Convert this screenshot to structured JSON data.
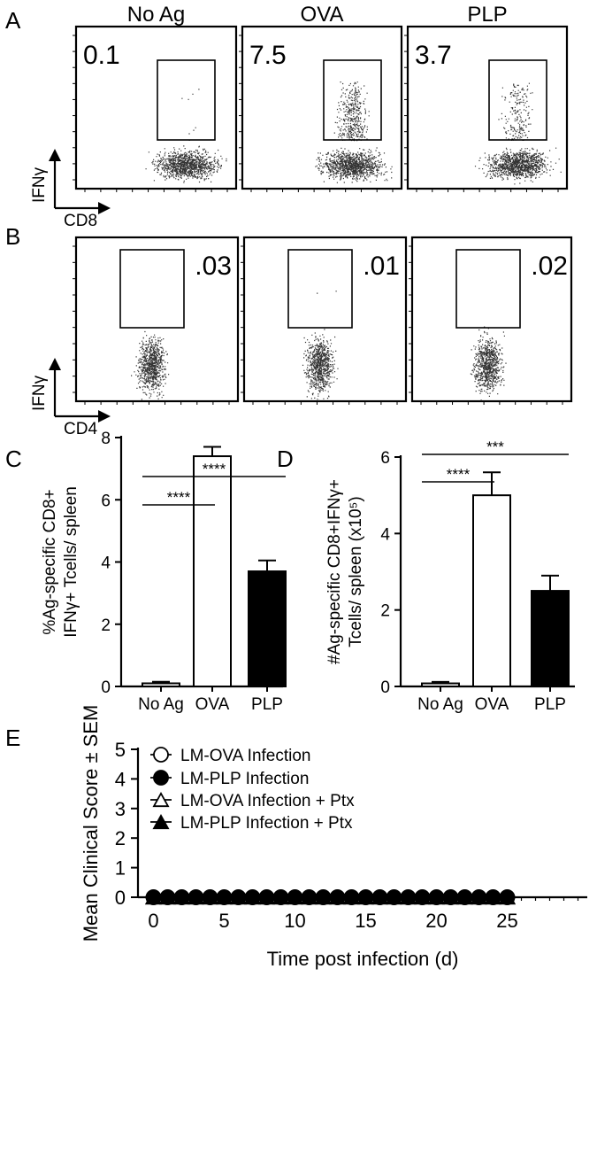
{
  "panel_letters": [
    "A",
    "B",
    "C",
    "D",
    "E"
  ],
  "flow": {
    "columns": [
      "No Ag",
      "OVA",
      "PLP"
    ],
    "A": {
      "x_label": "CD8",
      "y_label": "IFNγ",
      "values": [
        "0.1",
        "7.5",
        "3.7"
      ]
    },
    "B": {
      "x_label": "CD4",
      "y_label": "IFNγ",
      "values": [
        ".03",
        ".01",
        ".02"
      ]
    }
  },
  "chart_data": [
    {
      "panel": "C",
      "type": "bar",
      "categories": [
        "No Ag",
        "OVA",
        "PLP"
      ],
      "values": [
        0.1,
        7.4,
        3.7
      ],
      "errors": [
        0.05,
        0.3,
        0.35
      ],
      "bar_colors": [
        "#ffffff",
        "#ffffff",
        "#000000"
      ],
      "ylabel_lines": [
        "%Ag-specific CD8+",
        "IFNγ+ Tcells/ spleen"
      ],
      "ylim": [
        0,
        8
      ],
      "yticks": [
        0,
        2,
        4,
        6,
        8
      ],
      "significance": [
        {
          "from": 0,
          "to": 1,
          "label": "****"
        },
        {
          "from": 0,
          "to": 2,
          "label": "****"
        }
      ]
    },
    {
      "panel": "D",
      "type": "bar",
      "categories": [
        "No Ag",
        "OVA",
        "PLP"
      ],
      "values": [
        0.08,
        5.0,
        2.5
      ],
      "errors": [
        0.04,
        0.6,
        0.4
      ],
      "bar_colors": [
        "#ffffff",
        "#ffffff",
        "#000000"
      ],
      "ylabel_lines": [
        "#Ag-specific CD8+IFNγ+",
        "Tcells/ spleen (x10⁵)"
      ],
      "ylim": [
        0,
        6
      ],
      "yticks": [
        0,
        2,
        4,
        6
      ],
      "significance": [
        {
          "from": 0,
          "to": 1,
          "label": "****"
        },
        {
          "from": 0,
          "to": 2,
          "label": "***"
        }
      ]
    },
    {
      "panel": "E",
      "type": "scatter",
      "xlabel": "Time post infection (d)",
      "ylabel": "Mean Clinical Score ± SEM",
      "xlim": [
        -1,
        28
      ],
      "ylim": [
        0,
        5
      ],
      "xticks": [
        0,
        5,
        10,
        15,
        20,
        25
      ],
      "yticks": [
        0,
        1,
        2,
        3,
        4,
        5
      ],
      "x": [
        0,
        1,
        2,
        3,
        4,
        5,
        6,
        7,
        8,
        9,
        10,
        11,
        12,
        13,
        14,
        15,
        16,
        17,
        18,
        19,
        20,
        21,
        22,
        23,
        24,
        25
      ],
      "series": [
        {
          "name": "LM-OVA Infection",
          "marker": "circle-open",
          "values": [
            0,
            0,
            0,
            0,
            0,
            0,
            0,
            0,
            0,
            0,
            0,
            0,
            0,
            0,
            0,
            0,
            0,
            0,
            0,
            0,
            0,
            0,
            0,
            0,
            0,
            0
          ]
        },
        {
          "name": "LM-PLP Infection",
          "marker": "circle-filled",
          "values": [
            0,
            0,
            0,
            0,
            0,
            0,
            0,
            0,
            0,
            0,
            0,
            0,
            0,
            0,
            0,
            0,
            0,
            0,
            0,
            0,
            0,
            0,
            0,
            0,
            0,
            0
          ]
        },
        {
          "name": "LM-OVA Infection + Ptx",
          "marker": "triangle-open",
          "values": [
            0,
            0,
            0,
            0,
            0,
            0,
            0,
            0,
            0,
            0,
            0,
            0,
            0,
            0,
            0,
            0,
            0,
            0,
            0,
            0,
            0,
            0,
            0,
            0,
            0,
            0
          ]
        },
        {
          "name": "LM-PLP Infection + Ptx",
          "marker": "triangle-filled",
          "values": [
            0,
            0,
            0,
            0,
            0,
            0,
            0,
            0,
            0,
            0,
            0,
            0,
            0,
            0,
            0,
            0,
            0,
            0,
            0,
            0,
            0,
            0,
            0,
            0,
            0,
            0
          ]
        }
      ]
    }
  ]
}
